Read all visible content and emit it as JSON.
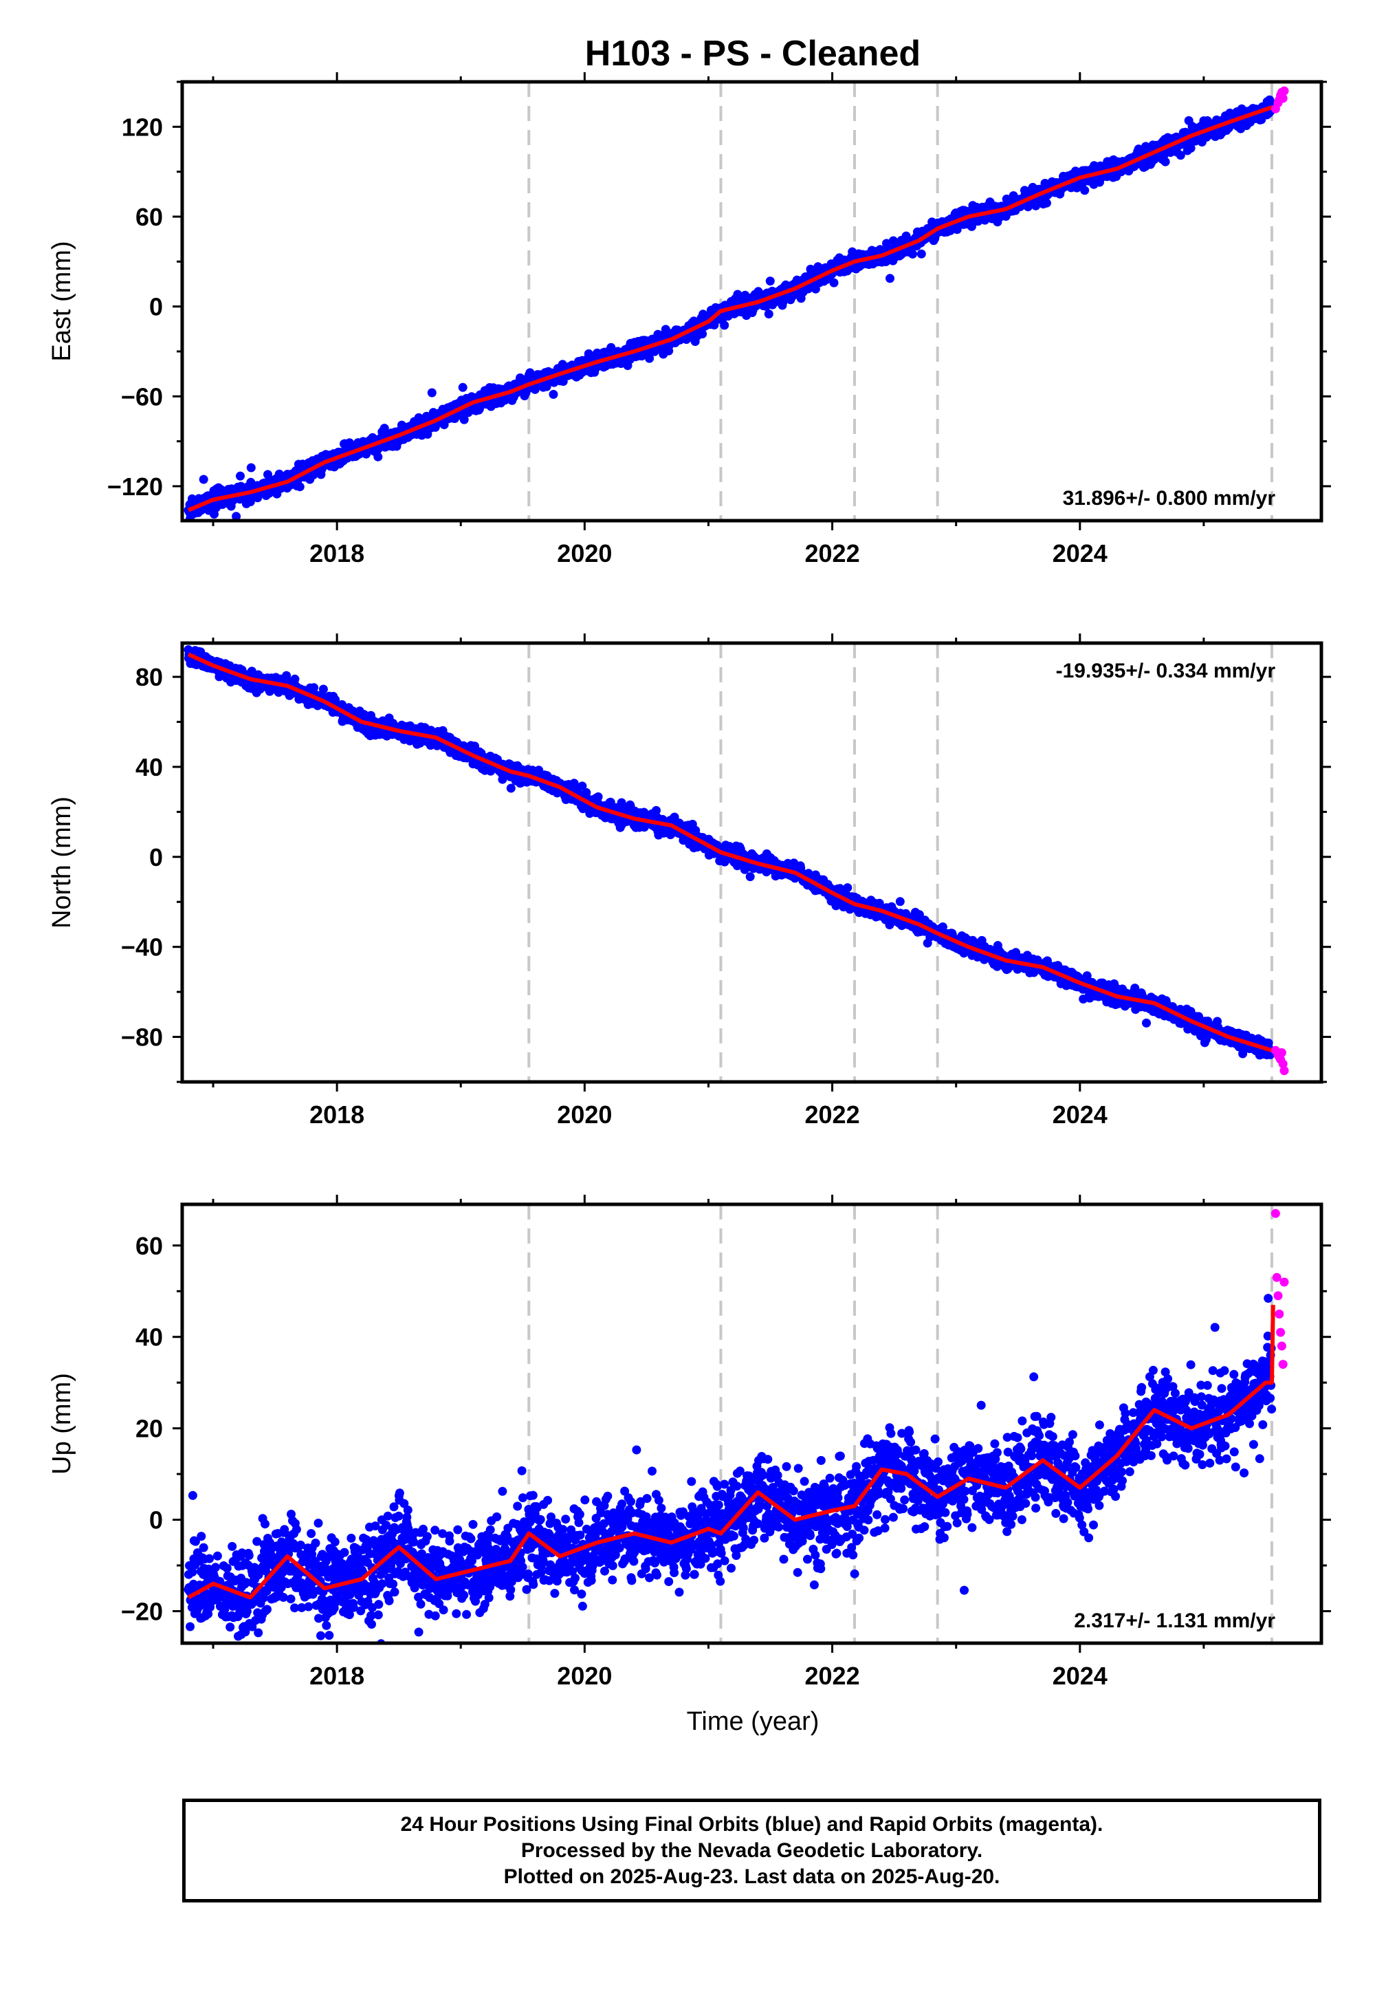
{
  "title": "H103  - PS - Cleaned",
  "colors": {
    "final_orbits": "#0000ff",
    "rapid_orbits": "#ff00ff",
    "model": "#ff0000",
    "event_lines": "#c8c8c8",
    "frame": "#000000"
  },
  "x_axis": {
    "label": "Time (year)",
    "range": [
      2016.75,
      2025.95
    ],
    "tick_labels": [
      "2018",
      "2020",
      "2022",
      "2024"
    ],
    "tick_values": [
      2018,
      2020,
      2022,
      2024
    ]
  },
  "event_lines": [
    2019.55,
    2021.1,
    2022.18,
    2022.85,
    2025.55
  ],
  "chart_data": [
    {
      "type": "scatter",
      "name": "east",
      "ylabel": "East (mm)",
      "ylim": [
        -143,
        150
      ],
      "y_tick_values": [
        -120,
        -60,
        0,
        60,
        120
      ],
      "y_tick_labels": [
        "−120",
        "−60",
        "0",
        "60",
        "120"
      ],
      "rate_label": "31.896+/- 0.800 mm/yr",
      "rate_position": "bottom-right",
      "model_x": [
        2016.8,
        2017.0,
        2017.3,
        2017.6,
        2017.9,
        2018.2,
        2018.5,
        2018.8,
        2019.1,
        2019.4,
        2019.55,
        2019.8,
        2020.1,
        2020.4,
        2020.7,
        2021.0,
        2021.1,
        2021.4,
        2021.7,
        2022.0,
        2022.18,
        2022.4,
        2022.7,
        2022.85,
        2023.1,
        2023.4,
        2023.7,
        2024.0,
        2024.3,
        2024.6,
        2024.9,
        2025.2,
        2025.55
      ],
      "model_y": [
        -136,
        -129,
        -124,
        -117,
        -104,
        -95,
        -86,
        -76,
        -64,
        -57,
        -52,
        -45,
        -37,
        -30,
        -22,
        -10,
        -3,
        3,
        12,
        24,
        30,
        34,
        44,
        52,
        60,
        65,
        76,
        86,
        92,
        103,
        114,
        123,
        133
      ],
      "noise_mm": 2.8,
      "rapid_x": [
        2025.58,
        2025.6,
        2025.61,
        2025.62,
        2025.63,
        2025.64,
        2025.65
      ],
      "rapid_y": [
        132,
        136,
        138,
        141,
        143,
        139,
        144
      ]
    },
    {
      "type": "scatter",
      "name": "north",
      "ylabel": "North (mm)",
      "ylim": [
        -100,
        95
      ],
      "y_tick_values": [
        -80,
        -40,
        0,
        40,
        80
      ],
      "y_tick_labels": [
        "−80",
        "−40",
        "0",
        "40",
        "80"
      ],
      "rate_label": "-19.935+/- 0.334 mm/yr",
      "rate_position": "top-right",
      "model_x": [
        2016.8,
        2017.0,
        2017.3,
        2017.6,
        2017.9,
        2018.2,
        2018.5,
        2018.8,
        2019.1,
        2019.4,
        2019.55,
        2019.8,
        2020.1,
        2020.4,
        2020.7,
        2021.0,
        2021.1,
        2021.4,
        2021.7,
        2022.0,
        2022.18,
        2022.4,
        2022.7,
        2022.85,
        2023.1,
        2023.4,
        2023.7,
        2024.0,
        2024.3,
        2024.6,
        2024.9,
        2025.2,
        2025.55
      ],
      "model_y": [
        90,
        85,
        79,
        76,
        69,
        60,
        56,
        53,
        45,
        38,
        36,
        31,
        22,
        17,
        14,
        5,
        2,
        -3,
        -7,
        -16,
        -21,
        -24,
        -30,
        -34,
        -40,
        -46,
        -49,
        -56,
        -62,
        -65,
        -73,
        -80,
        -86
      ],
      "noise_mm": 1.8,
      "rapid_x": [
        2025.58,
        2025.6,
        2025.61,
        2025.62,
        2025.63,
        2025.64,
        2025.65
      ],
      "rapid_y": [
        -86,
        -88,
        -89,
        -90,
        -87,
        -92,
        -95
      ]
    },
    {
      "type": "scatter",
      "name": "up",
      "ylabel": "Up (mm)",
      "ylim": [
        -27,
        69
      ],
      "y_tick_values": [
        -20,
        0,
        20,
        40,
        60
      ],
      "y_tick_labels": [
        "−20",
        "0",
        "20",
        "40",
        "60"
      ],
      "rate_label": "2.317+/- 1.131 mm/yr",
      "rate_position": "bottom-right",
      "model_x": [
        2016.8,
        2017.0,
        2017.3,
        2017.6,
        2017.9,
        2018.2,
        2018.5,
        2018.8,
        2019.1,
        2019.4,
        2019.55,
        2019.8,
        2020.1,
        2020.4,
        2020.7,
        2021.0,
        2021.1,
        2021.4,
        2021.7,
        2022.0,
        2022.18,
        2022.4,
        2022.6,
        2022.85,
        2023.1,
        2023.4,
        2023.7,
        2024.0,
        2024.3,
        2024.6,
        2024.9,
        2025.2,
        2025.5,
        2025.55,
        2025.56
      ],
      "model_y": [
        -17,
        -14,
        -17,
        -8,
        -15,
        -13,
        -6,
        -13,
        -11,
        -9,
        -3,
        -8,
        -5,
        -3,
        -5,
        -2,
        -3,
        6,
        0,
        2,
        3,
        11,
        10,
        5,
        9,
        7,
        13,
        7,
        14,
        24,
        20,
        23,
        30,
        30,
        47
      ],
      "noise_mm": 4.5,
      "rapid_x": [
        2025.58,
        2025.59,
        2025.6,
        2025.61,
        2025.62,
        2025.63,
        2025.64,
        2025.65
      ],
      "rapid_y": [
        67,
        53,
        49,
        45,
        41,
        38,
        34,
        52
      ]
    }
  ],
  "footer": {
    "line1": "24 Hour Positions Using Final Orbits (blue) and Rapid Orbits (magenta).",
    "line2": "Processed by the Nevada Geodetic Laboratory.",
    "line3": "Plotted on 2025-Aug-23. Last data on 2025-Aug-20."
  }
}
